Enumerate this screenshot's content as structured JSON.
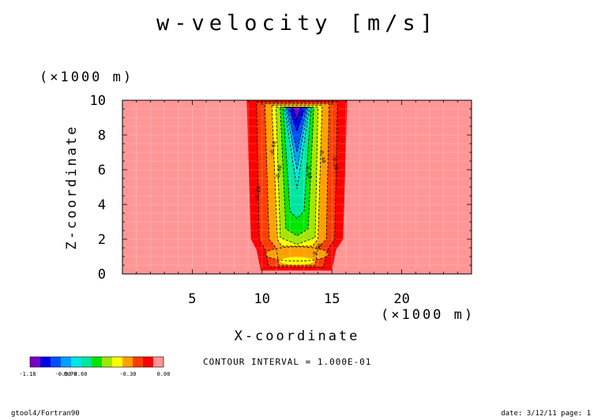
{
  "chart_data": {
    "type": "heatmap",
    "title": "w-velocity [m/s]",
    "xlabel": "X-coordinate",
    "ylabel": "Z-coordinate",
    "x_unit": "(×1000 m)",
    "y_unit": "(×1000 m)",
    "xlim": [
      0,
      25
    ],
    "ylim": [
      0,
      10
    ],
    "x_ticks": [
      "5",
      "10",
      "15",
      "20"
    ],
    "y_ticks": [
      "0",
      "2",
      "4",
      "6",
      "8",
      "10"
    ],
    "contour_interval_label": "CONTOUR INTERVAL = 1.000E-01",
    "contour_labels": [
      "-0.60",
      "-0.40",
      "-0.20",
      "-0.20",
      "-0.40",
      "-0.60",
      "-0.90"
    ],
    "colorbar": {
      "colors": [
        "#7a00c8",
        "#0000e6",
        "#0050ff",
        "#00a0ff",
        "#00e6e6",
        "#00e6a0",
        "#00e600",
        "#a0e600",
        "#ffff00",
        "#ffa000",
        "#ff3c00",
        "#ff0000",
        "#ff9696"
      ],
      "labels": [
        "-1.18",
        "-0.90",
        "-0.70",
        "-0.60",
        "-0.30",
        "0.00"
      ]
    },
    "levels": [
      {
        "value": -1.2,
        "color": "#7a00c8"
      },
      {
        "value": -1.1,
        "color": "#0000e6"
      },
      {
        "value": -1.0,
        "color": "#0050ff"
      },
      {
        "value": -0.9,
        "color": "#00a0ff"
      },
      {
        "value": -0.8,
        "color": "#00e6e6"
      },
      {
        "value": -0.7,
        "color": "#00e6a0"
      },
      {
        "value": -0.6,
        "color": "#00e600"
      },
      {
        "value": -0.5,
        "color": "#a0e600"
      },
      {
        "value": -0.4,
        "color": "#ffff00"
      },
      {
        "value": -0.3,
        "color": "#ffa000"
      },
      {
        "value": -0.2,
        "color": "#ff3c00"
      },
      {
        "value": -0.1,
        "color": "#ff0000"
      },
      {
        "value": 0.0,
        "color": "#ff9696"
      }
    ],
    "background_color": "#ff9696"
  },
  "footer": {
    "left": "gtool4/Fortran90",
    "right": "date: 3/12/11 page: 1"
  }
}
